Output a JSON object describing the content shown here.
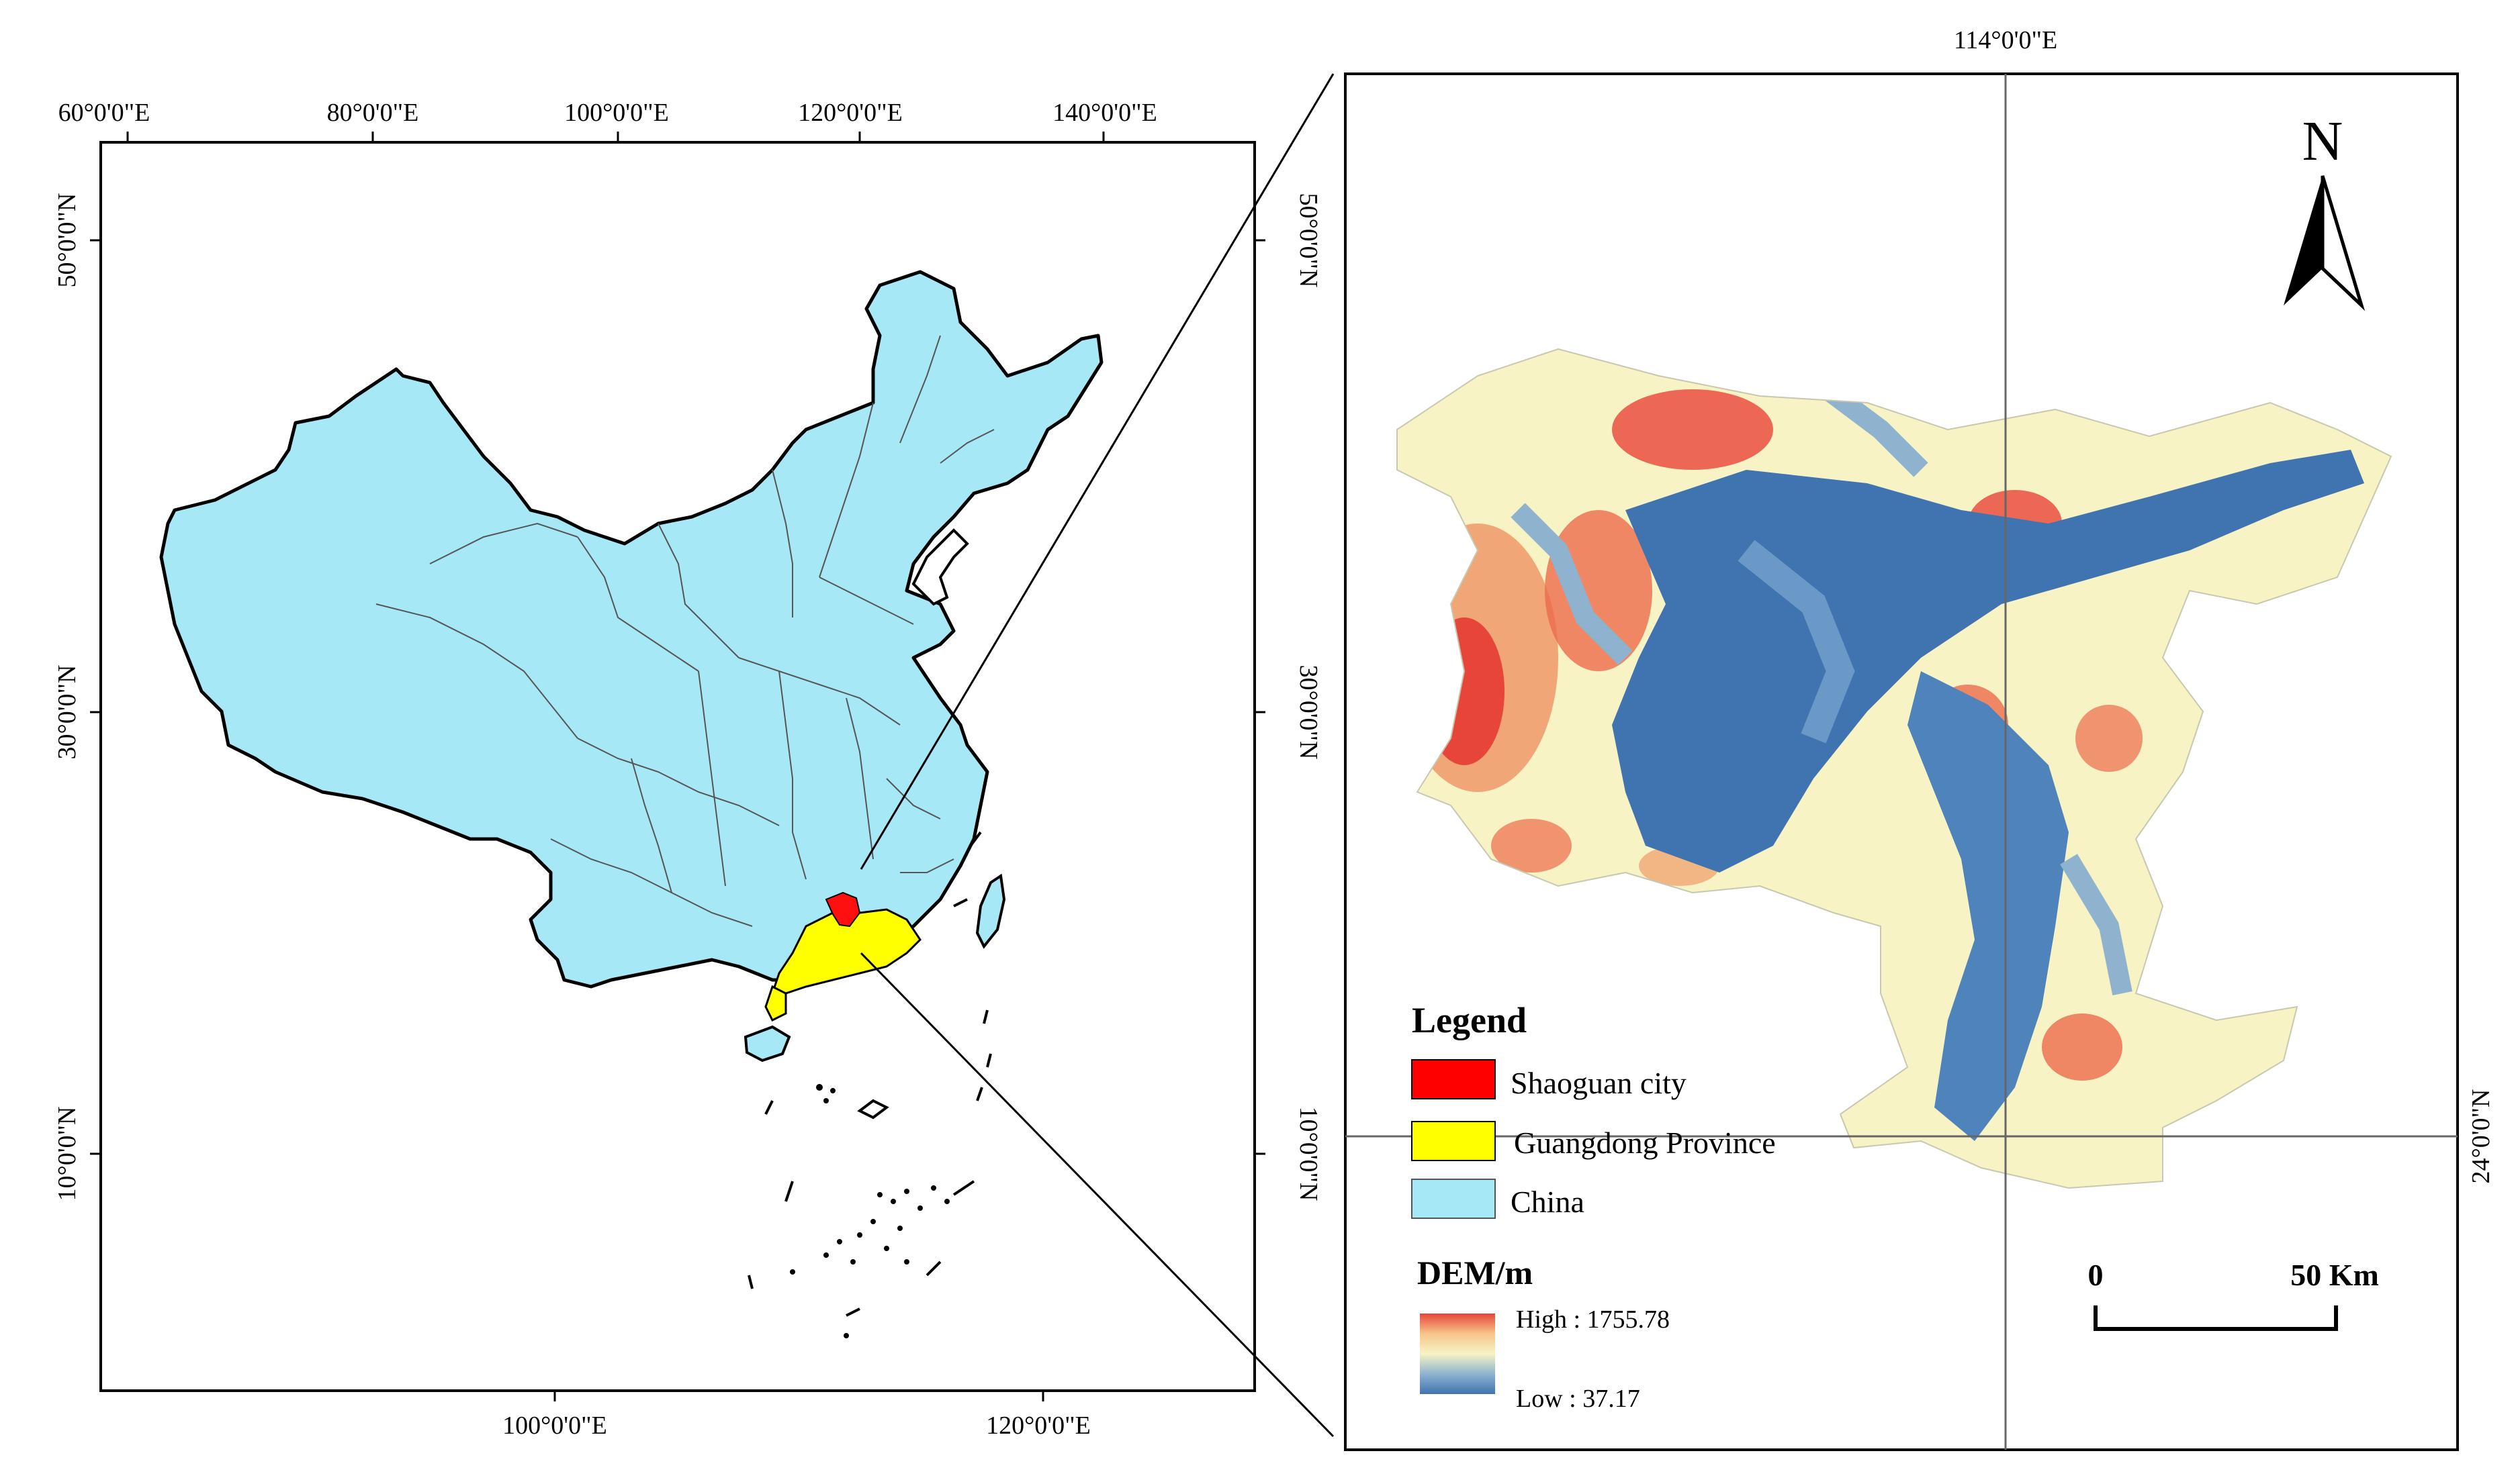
{
  "left_map": {
    "top_lon_labels": [
      "60°0'0\"E",
      "80°0'0\"E",
      "100°0'0\"E",
      "120°0'0\"E",
      "140°0'0\"E"
    ],
    "bottom_lon_labels": [
      "100°0'0\"E",
      "120°0'0\"E"
    ],
    "left_lat_labels": [
      "50°0'0\"N",
      "30°0'0\"N",
      "10°0'0\"N"
    ],
    "right_lat_labels": [
      "50°0'0\"N",
      "30°0'0\"N",
      "10°0'0\"N"
    ]
  },
  "right_map": {
    "top_lon_label": "114°0'0\"E",
    "right_lat_label": "24°0'0\"N",
    "north_arrow": "N",
    "scale_bar": {
      "start": "0",
      "end": "50 Km"
    }
  },
  "legend": {
    "title": "Legend",
    "items": [
      {
        "label": "Shaoguan city",
        "color": "#ff0000"
      },
      {
        "label": "Guangdong Province",
        "color": "#ffff00"
      },
      {
        "label": "China",
        "color": "#a6e8f6"
      }
    ],
    "dem_title": "DEM/m",
    "dem_high": "High : 1755.78",
    "dem_low": "Low : 37.17",
    "dem_colors": [
      "#e8453a",
      "#f6c58a",
      "#f7f3c4",
      "#8fb3cf",
      "#3f74b0"
    ]
  },
  "colors": {
    "china_fill": "#a6e8f6",
    "guangdong_fill": "#ffff00",
    "shaoguan_fill": "#ff1010",
    "dem_low": "#3f74b0",
    "dem_mid": "#f7f3c4",
    "dem_high": "#e8453a"
  }
}
